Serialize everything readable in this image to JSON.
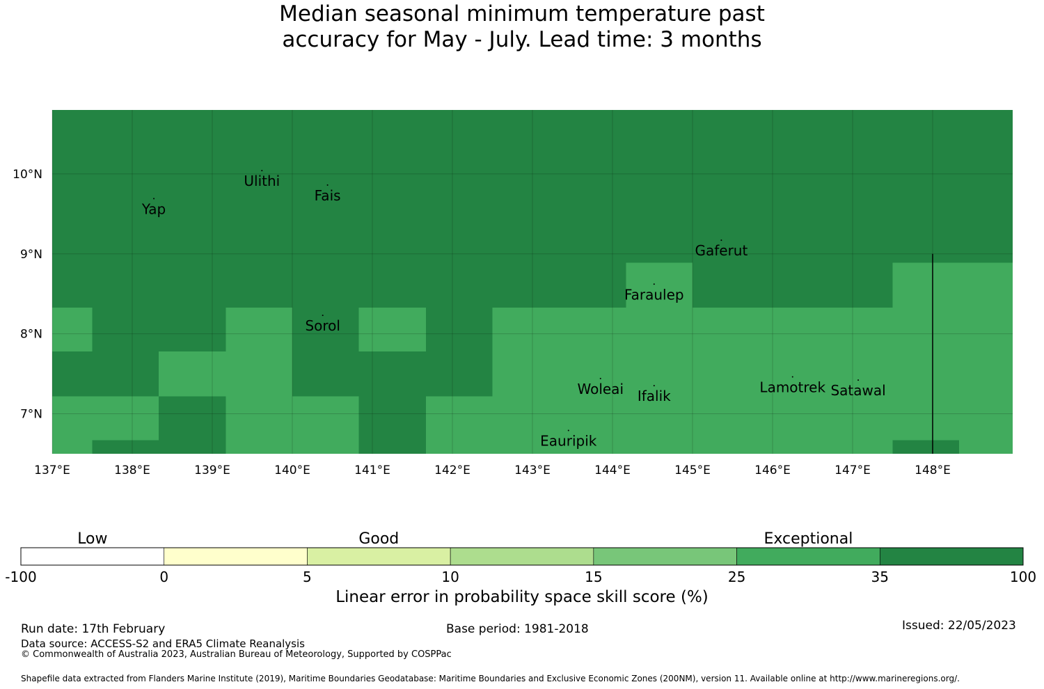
{
  "title": {
    "line1": "Median seasonal minimum temperature past",
    "line2": "accuracy for May - July. Lead time: 3 months"
  },
  "map": {
    "extent": {
      "lon_min": 137.0,
      "lon_max": 149.0,
      "lat_min": 6.5,
      "lat_max": 10.8
    },
    "grid": {
      "lon_step": 1,
      "lat_step": 1
    },
    "x_ticks": [
      {
        "value": 137,
        "label": "137°E"
      },
      {
        "value": 138,
        "label": "138°E"
      },
      {
        "value": 139,
        "label": "139°E"
      },
      {
        "value": 140,
        "label": "140°E"
      },
      {
        "value": 141,
        "label": "141°E"
      },
      {
        "value": 142,
        "label": "142°E"
      },
      {
        "value": 143,
        "label": "143°E"
      },
      {
        "value": 144,
        "label": "144°E"
      },
      {
        "value": 145,
        "label": "145°E"
      },
      {
        "value": 146,
        "label": "146°E"
      },
      {
        "value": 147,
        "label": "147°E"
      },
      {
        "value": 148,
        "label": "148°E"
      }
    ],
    "y_ticks": [
      {
        "value": 10,
        "label": "10°N"
      },
      {
        "value": 9,
        "label": "9°N"
      },
      {
        "value": 8,
        "label": "8°N"
      },
      {
        "value": 7,
        "label": "7°N"
      }
    ],
    "colors": {
      "exceptional": "#238443",
      "good": "#41ab5d"
    },
    "regions_good": [
      {
        "lon": [
          137.0,
          137.5
        ],
        "lat": [
          7.78,
          8.33
        ]
      },
      {
        "lon": [
          138.33,
          139.17
        ],
        "lat": [
          7.22,
          7.78
        ]
      },
      {
        "lon": [
          137.0,
          138.33
        ],
        "lat": [
          6.67,
          7.22
        ]
      },
      {
        "lon": [
          137.0,
          137.5
        ],
        "lat": [
          6.5,
          6.67
        ]
      },
      {
        "lon": [
          139.17,
          140.0
        ],
        "lat": [
          6.5,
          8.33
        ]
      },
      {
        "lon": [
          140.0,
          140.83
        ],
        "lat": [
          6.5,
          7.22
        ]
      },
      {
        "lon": [
          140.83,
          141.67
        ],
        "lat": [
          7.78,
          8.33
        ]
      },
      {
        "lon": [
          141.67,
          142.5
        ],
        "lat": [
          6.5,
          7.22
        ]
      },
      {
        "lon": [
          142.5,
          144.17
        ],
        "lat": [
          6.5,
          8.33
        ]
      },
      {
        "lon": [
          144.17,
          145.0
        ],
        "lat": [
          6.5,
          8.89
        ]
      },
      {
        "lon": [
          145.0,
          147.5
        ],
        "lat": [
          6.5,
          8.33
        ]
      },
      {
        "lon": [
          147.5,
          148.33
        ],
        "lat": [
          6.67,
          8.89
        ]
      },
      {
        "lon": [
          148.33,
          149.0
        ],
        "lat": [
          6.5,
          8.89
        ]
      }
    ],
    "boundary_line": {
      "lon": 148.0,
      "lat": [
        6.5,
        9.0
      ]
    },
    "places": [
      {
        "name": "Yap",
        "lon": 138.27,
        "lat": 9.5
      },
      {
        "name": "Ulithi",
        "lon": 139.62,
        "lat": 9.85
      },
      {
        "name": "Fais",
        "lon": 140.44,
        "lat": 9.67
      },
      {
        "name": "Gaferut",
        "lon": 145.36,
        "lat": 8.98
      },
      {
        "name": "Faraulep",
        "lon": 144.52,
        "lat": 8.43
      },
      {
        "name": "Sorol",
        "lon": 140.38,
        "lat": 8.04
      },
      {
        "name": "Woleai",
        "lon": 143.85,
        "lat": 7.25
      },
      {
        "name": "Ifalik",
        "lon": 144.52,
        "lat": 7.16
      },
      {
        "name": "Lamotrek",
        "lon": 146.25,
        "lat": 7.27
      },
      {
        "name": "Satawal",
        "lon": 147.07,
        "lat": 7.23
      },
      {
        "name": "Eauripik",
        "lon": 143.45,
        "lat": 6.6
      }
    ]
  },
  "colorbar": {
    "categories": [
      {
        "label": "Low",
        "after_segment": 1
      },
      {
        "label": "Good",
        "after_segment": 3
      },
      {
        "label": "Exceptional",
        "after_segment": 6
      }
    ],
    "segments": [
      {
        "from": "-100",
        "to": "0",
        "color": "#ffffff"
      },
      {
        "from": "0",
        "to": "5",
        "color": "#ffffcc"
      },
      {
        "from": "5",
        "to": "10",
        "color": "#d9f0a3"
      },
      {
        "from": "10",
        "to": "15",
        "color": "#addd8e"
      },
      {
        "from": "15",
        "to": "25",
        "color": "#78c679"
      },
      {
        "from": "25",
        "to": "35",
        "color": "#41ab5d"
      },
      {
        "from": "35",
        "to": "100",
        "color": "#238443"
      }
    ],
    "tick_labels": [
      "-100",
      "0",
      "5",
      "10",
      "15",
      "25",
      "35",
      "100"
    ],
    "title": "Linear error in probability space skill score (%)"
  },
  "footer": {
    "run_date": "Run date: 17th February",
    "base_period": "Base period: 1981-2018",
    "issued": "Issued: 22/05/2023",
    "data_source": "Data source: ACCESS-S2 and ERA5 Climate Reanalysis",
    "copyright": "© Commonwealth of Australia 2023, Australian Bureau of Meteorology, Supported by COSPPac",
    "shapefile": "Shapefile data extracted from Flanders Marine Institute (2019), Maritime Boundaries Geodatabase: Maritime Boundaries and Exclusive Economic Zones (200NM), version 11. Available online at http://www.marineregions.org/."
  }
}
